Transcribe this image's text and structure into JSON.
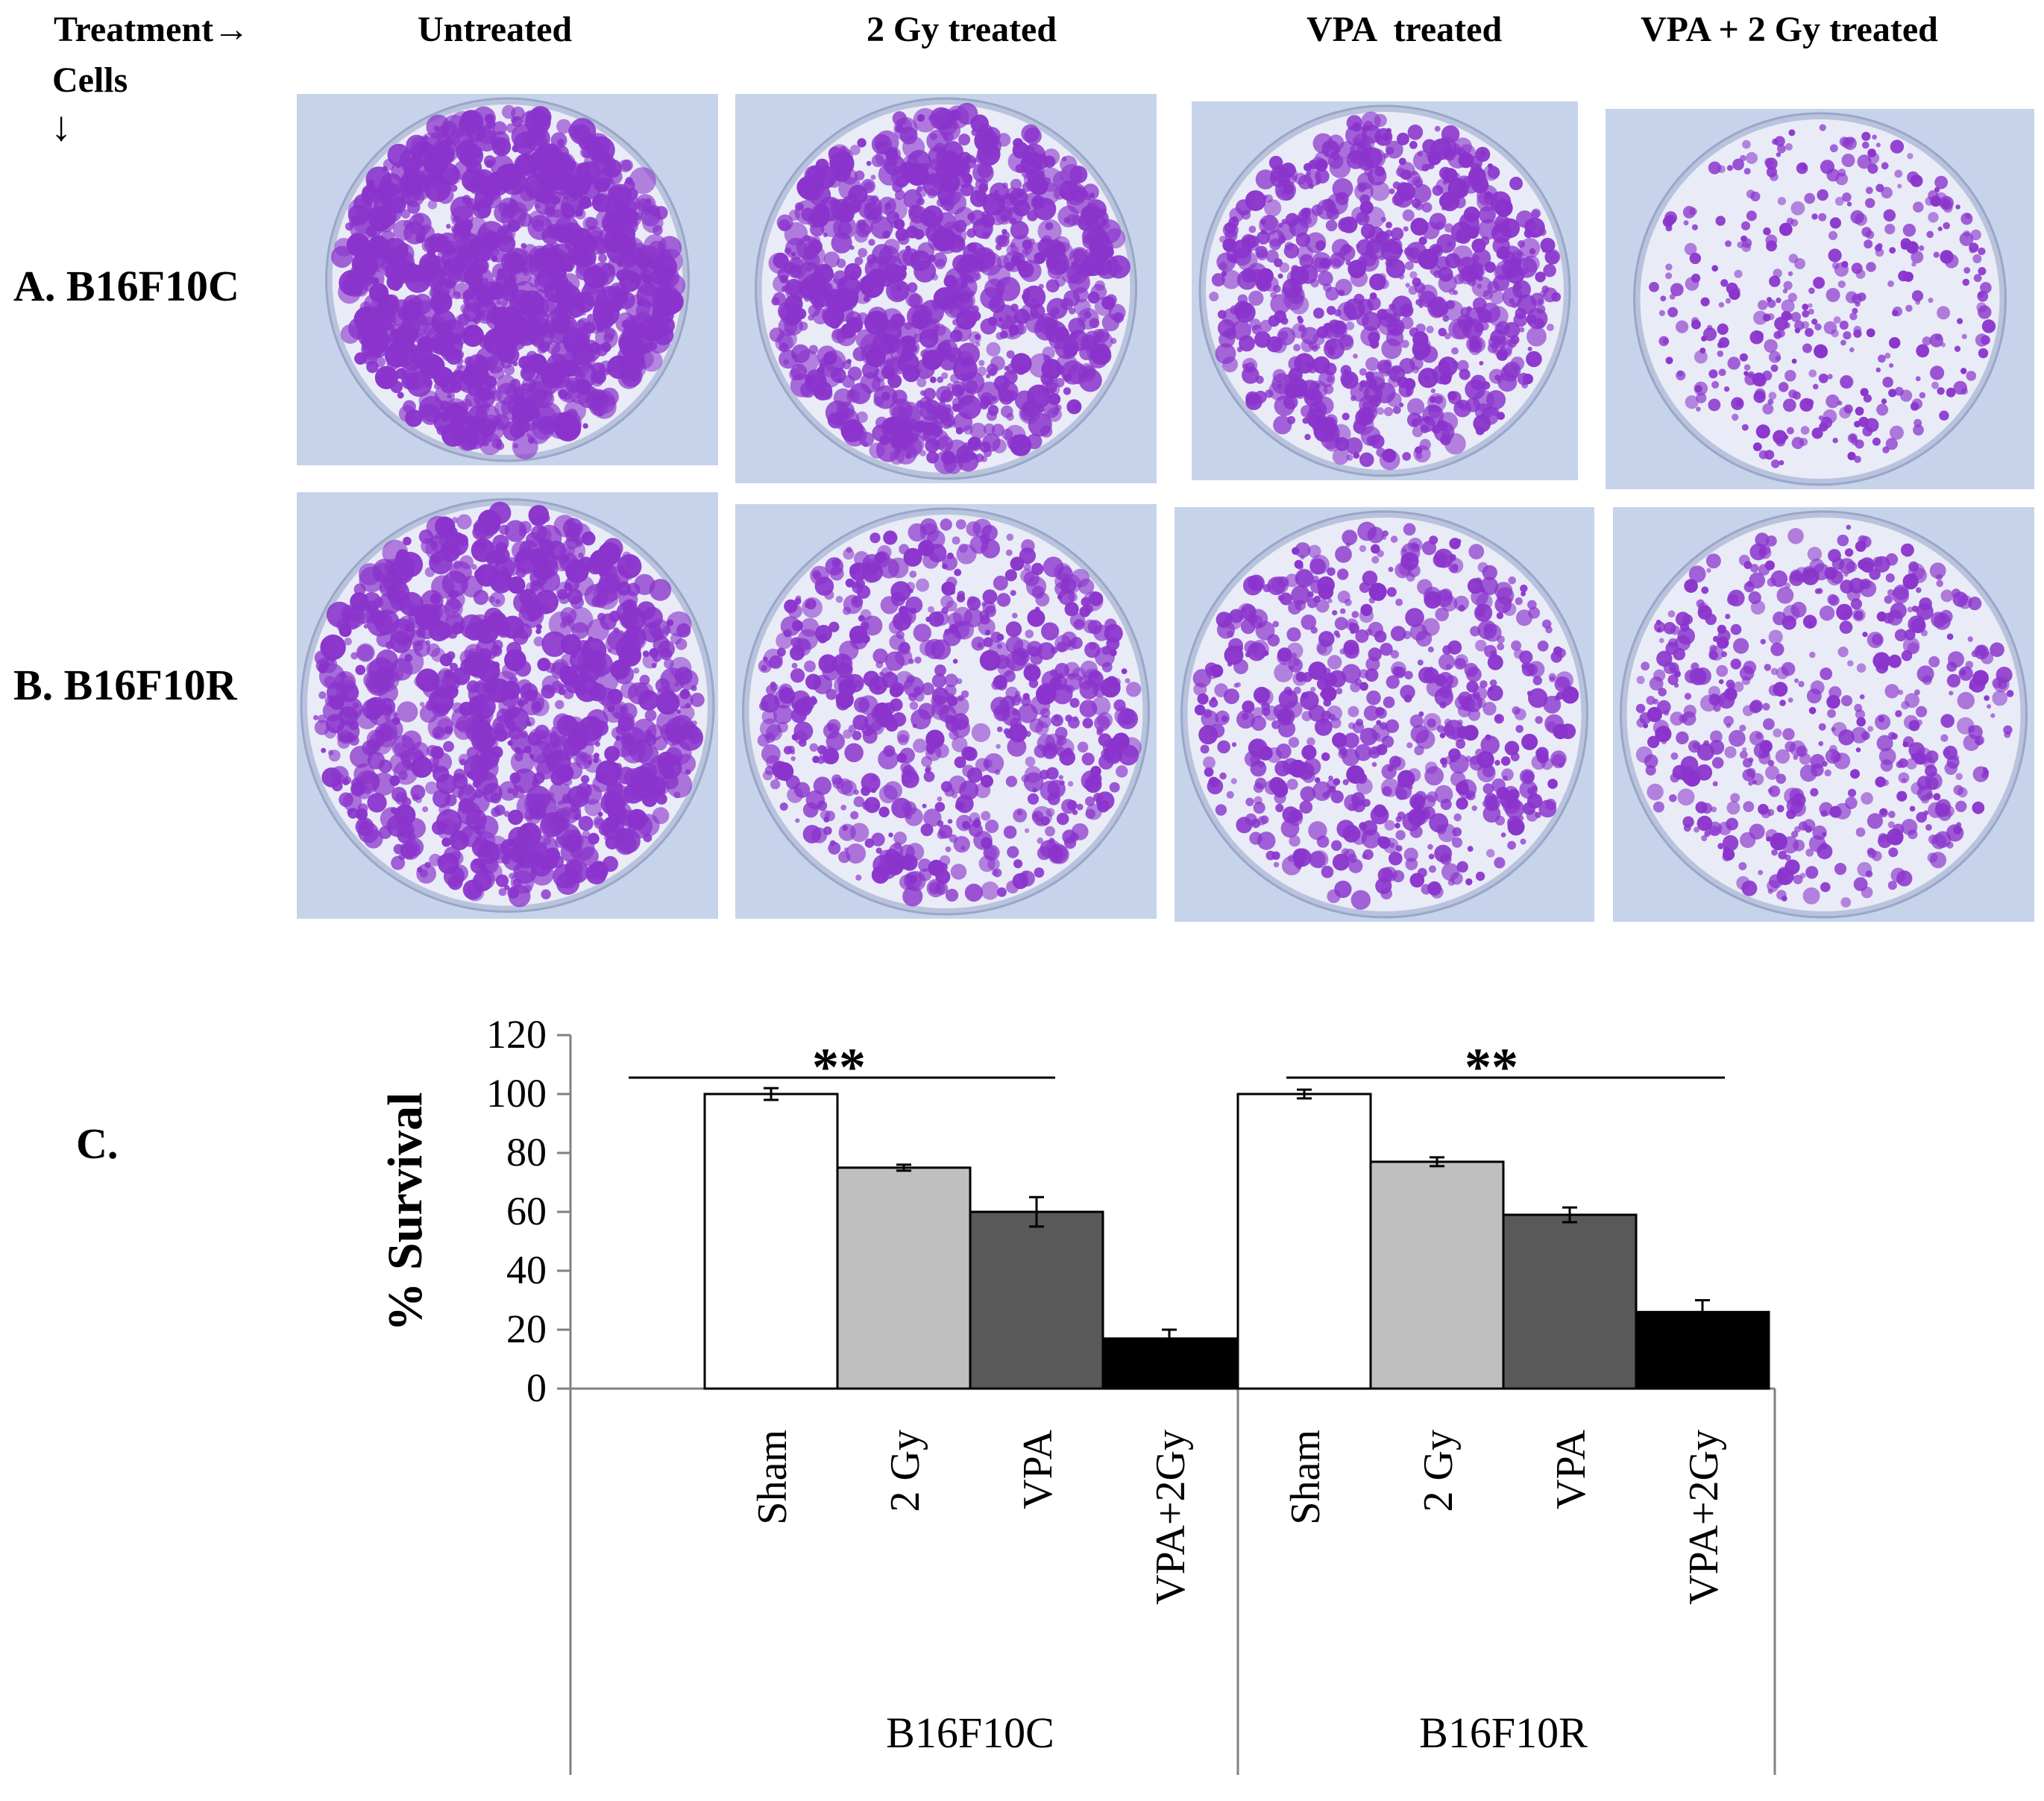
{
  "figure": {
    "corner": {
      "treatment": "Treatment→",
      "cells": "Cells",
      "arrow": "↓"
    },
    "columns": [
      "Untreated",
      "2 Gy treated",
      "VPA  treated",
      "VPA + 2 Gy treated"
    ],
    "rows": [
      "A. B16F10C",
      "B. B16F10R"
    ],
    "panel_c_label": "C.",
    "significance": [
      "**",
      "**"
    ]
  },
  "plates": {
    "colony_color": "#8a34cc",
    "background_color": "#c6d3ea",
    "dish_color": "#e9ecf6",
    "coverage_note": "relative colony density per plate",
    "density": {
      "B16F10C": [
        0.95,
        0.8,
        0.62,
        0.22
      ],
      "B16F10R": [
        0.88,
        0.58,
        0.52,
        0.4
      ]
    }
  },
  "chart_data": {
    "type": "bar",
    "title": "",
    "xlabel": "",
    "ylabel": "% Survival",
    "ylim": [
      0,
      120
    ],
    "yticks": [
      0,
      20,
      40,
      60,
      80,
      100,
      120
    ],
    "grid": false,
    "groups": [
      "B16F10C",
      "B16F10R"
    ],
    "categories": [
      "Sham",
      "2 Gy",
      "VPA",
      "VPA+2Gy"
    ],
    "colors": [
      "#ffffff",
      "#bfbfbf",
      "#595959",
      "#000000"
    ],
    "series": [
      {
        "values": [
          100,
          75,
          60,
          17
        ],
        "errors": [
          2,
          1,
          5,
          3
        ]
      },
      {
        "values": [
          100,
          77,
          59,
          26
        ],
        "errors": [
          1.5,
          1.5,
          2.5,
          4
        ]
      }
    ]
  }
}
